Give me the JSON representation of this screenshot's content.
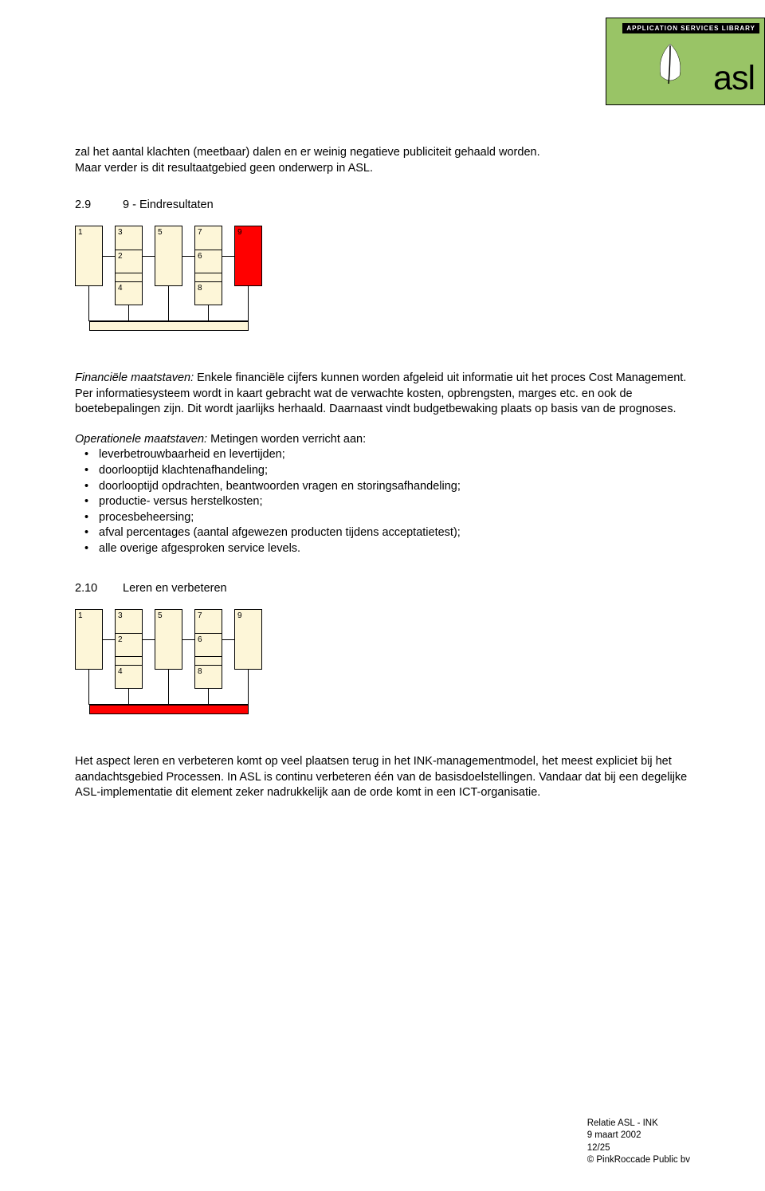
{
  "logo": {
    "banner": "APPLICATION SERVICES LIBRARY",
    "text": "asl",
    "bg_color": "#99c466",
    "banner_bg": "#000000",
    "banner_fg": "#ffffff",
    "leaf_fill": "#ffffff",
    "leaf_stem": "#000000"
  },
  "intro": {
    "line1": "zal het aantal klachten (meetbaar) dalen en er weinig negatieve publiciteit gehaald worden.",
    "line2": "Maar verder is dit resultaatgebied geen onderwerp in ASL."
  },
  "section9": {
    "num": "2.9",
    "title": "9 - Eindresultaten",
    "diagram": {
      "top_row": [
        "1",
        "3",
        "5",
        "7",
        "9"
      ],
      "mid_row": [
        "2",
        "6"
      ],
      "bot_row": [
        "4",
        "8"
      ],
      "highlight_index": 4,
      "box_fill": "#fdf6d8",
      "highlight_fill": "#ff0000",
      "border": "#000000",
      "bar_fill": "#fdf6d8"
    },
    "financiele_label": "Financiële maatstaven:",
    "financiele_text": " Enkele financiële cijfers kunnen worden afgeleid uit informatie uit het proces Cost Management. Per informatiesysteem wordt in kaart gebracht wat de verwachte kosten, opbrengsten, marges etc. en ook de boetebepalingen zijn. Dit wordt jaarlijks herhaald. Daarnaast vindt budgetbewaking plaats op basis van de prognoses.",
    "operationele_label": "Operationele maatstaven:",
    "operationele_intro": " Metingen worden verricht aan:",
    "operationele_items": [
      "leverbetrouwbaarheid en levertijden;",
      "doorlooptijd klachtenafhandeling;",
      "doorlooptijd opdrachten, beantwoorden vragen en storingsafhandeling;",
      "productie- versus herstelkosten;",
      "procesbeheersing;",
      "afval percentages (aantal afgewezen producten tijdens acceptatietest);",
      "alle overige afgesproken service levels."
    ]
  },
  "section10": {
    "num": "2.10",
    "title": "Leren en verbeteren",
    "diagram": {
      "top_row": [
        "1",
        "3",
        "5",
        "7",
        "9"
      ],
      "mid_row": [
        "2",
        "6"
      ],
      "bot_row": [
        "4",
        "8"
      ],
      "box_fill": "#fdf6d8",
      "border": "#000000",
      "bar_fill": "#ff0000"
    },
    "paragraph": "Het aspect leren en verbeteren komt op veel plaatsen terug in het INK-managementmodel, het meest expliciet bij het aandachtsgebied Processen. In ASL is continu verbeteren één van de basisdoelstellingen. Vandaar dat bij een degelijke ASL-implementatie dit element zeker nadrukkelijk aan de orde komt in een ICT-organisatie."
  },
  "footer": {
    "l1": "Relatie ASL - INK",
    "l2": "9 maart 2002",
    "l3": "12/25",
    "l4": "© PinkRoccade Public bv"
  }
}
